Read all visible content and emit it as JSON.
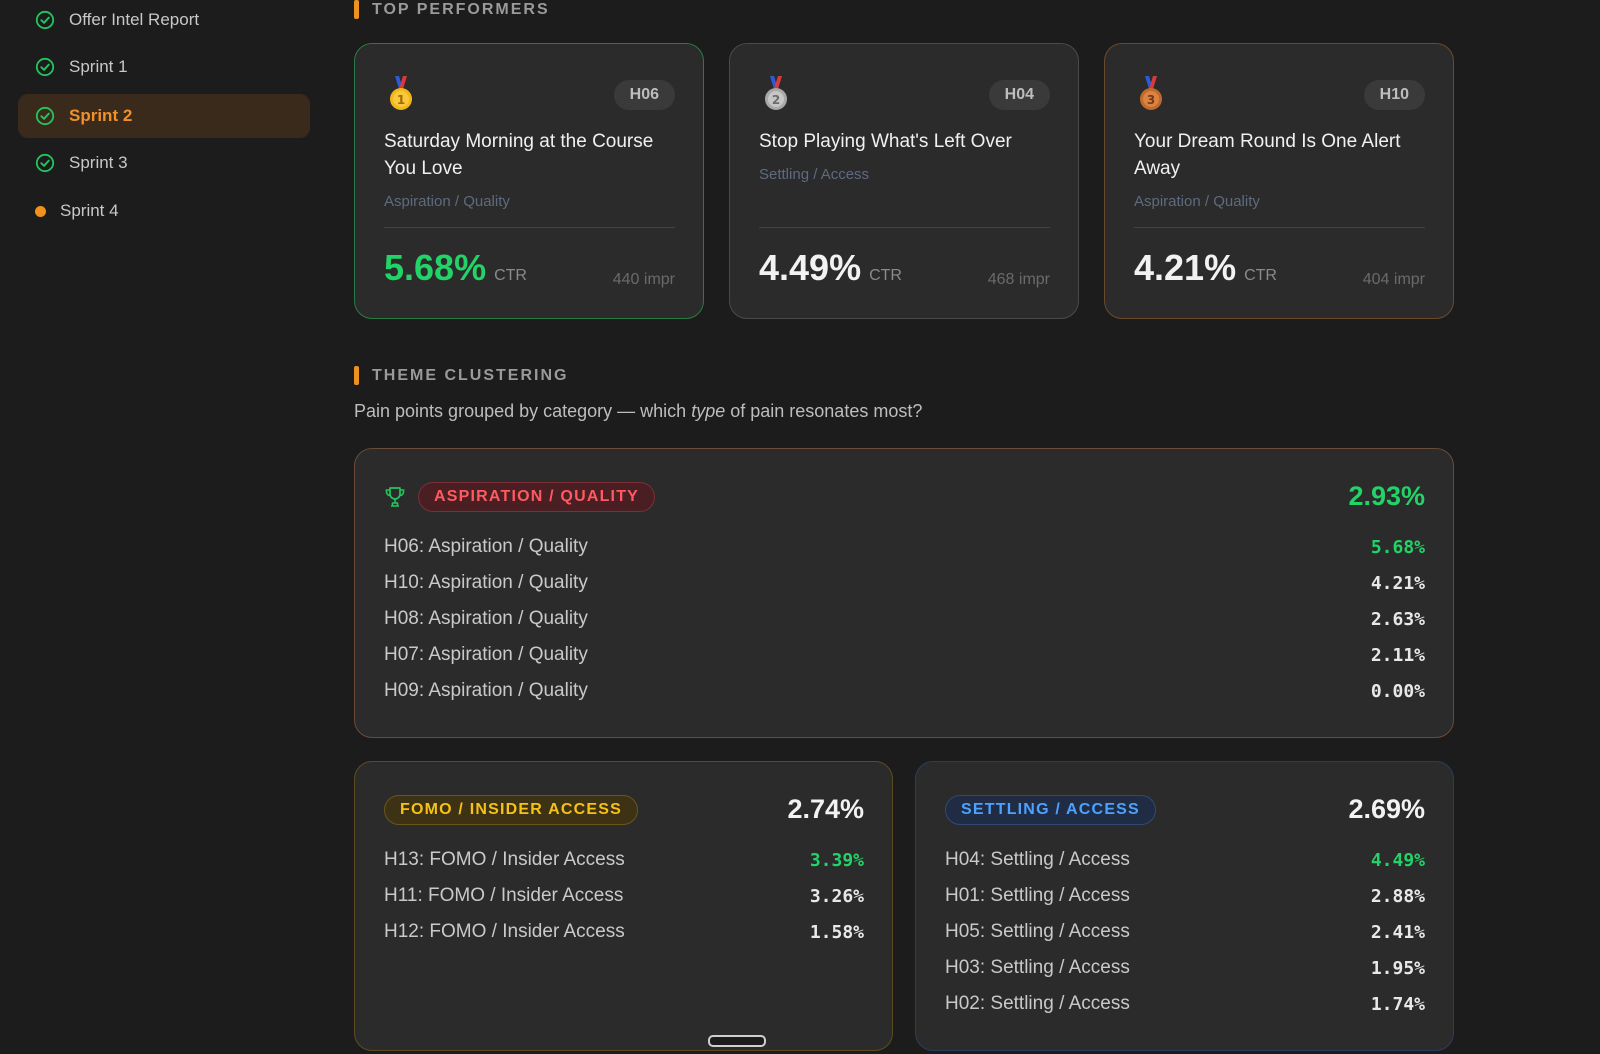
{
  "sidebar": {
    "items": [
      {
        "label": "Offer Intel Report",
        "status": "done"
      },
      {
        "label": "Sprint 1",
        "status": "done"
      },
      {
        "label": "Sprint 2",
        "status": "done",
        "active": true
      },
      {
        "label": "Sprint 3",
        "status": "done"
      },
      {
        "label": "Sprint 4",
        "status": "in-progress"
      }
    ]
  },
  "top_performers": {
    "title": "TOP PERFORMERS",
    "cards": [
      {
        "medal": "gold-medal",
        "rank": "1",
        "id": "H06",
        "title": "Saturday Morning at the Course You Love",
        "category": "Aspiration / Quality",
        "ctr": "5.68%",
        "ctr_unit": "CTR",
        "impressions": "440 impr"
      },
      {
        "medal": "silver-medal",
        "rank": "2",
        "id": "H04",
        "title": "Stop Playing What's Left Over",
        "category": "Settling / Access",
        "ctr": "4.49%",
        "ctr_unit": "CTR",
        "impressions": "468 impr"
      },
      {
        "medal": "bronze-medal",
        "rank": "3",
        "id": "H10",
        "title": "Your Dream Round Is One Alert Away",
        "category": "Aspiration / Quality",
        "ctr": "4.21%",
        "ctr_unit": "CTR",
        "impressions": "404 impr"
      }
    ]
  },
  "theme_clustering": {
    "title": "THEME CLUSTERING",
    "subtitle_pre": "Pain points grouped by category — which ",
    "subtitle_em": "type",
    "subtitle_post": " of pain resonates most?",
    "clusters": [
      {
        "name": "ASPIRATION / QUALITY",
        "avg": "2.93%",
        "rows": [
          {
            "label": "H06: Aspiration / Quality",
            "value": "5.68%"
          },
          {
            "label": "H10: Aspiration / Quality",
            "value": "4.21%"
          },
          {
            "label": "H08: Aspiration / Quality",
            "value": "2.63%"
          },
          {
            "label": "H07: Aspiration / Quality",
            "value": "2.11%"
          },
          {
            "label": "H09: Aspiration / Quality",
            "value": "0.00%"
          }
        ]
      },
      {
        "name": "FOMO / INSIDER ACCESS",
        "avg": "2.74%",
        "rows": [
          {
            "label": "H13: FOMO / Insider Access",
            "value": "3.39%"
          },
          {
            "label": "H11: FOMO / Insider Access",
            "value": "3.26%"
          },
          {
            "label": "H12: FOMO / Insider Access",
            "value": "1.58%"
          }
        ]
      },
      {
        "name": "SETTLING / ACCESS",
        "avg": "2.69%",
        "rows": [
          {
            "label": "H04: Settling / Access",
            "value": "4.49%"
          },
          {
            "label": "H01: Settling / Access",
            "value": "2.88%"
          },
          {
            "label": "H05: Settling / Access",
            "value": "2.41%"
          },
          {
            "label": "H03: Settling / Access",
            "value": "1.95%"
          },
          {
            "label": "H02: Settling / Access",
            "value": "1.74%"
          }
        ]
      }
    ]
  },
  "colors": {
    "accent_orange": "#f0901e",
    "positive_green": "#22d367",
    "aspiration_red": "#ff5a5f",
    "fomo_yellow": "#f6c118",
    "settling_blue": "#4da2ff"
  }
}
